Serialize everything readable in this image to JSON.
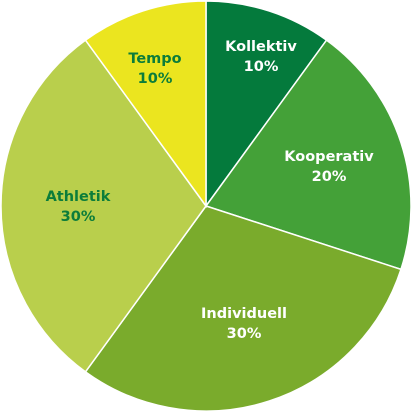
{
  "chart_data": {
    "type": "pie",
    "slices": [
      {
        "label": "Kollektiv",
        "value": 10,
        "value_label": "10%",
        "color": "#047a3c",
        "text_color": "#ffffff"
      },
      {
        "label": "Kooperativ",
        "value": 20,
        "value_label": "20%",
        "color": "#44a138",
        "text_color": "#ffffff"
      },
      {
        "label": "Individuell",
        "value": 30,
        "value_label": "30%",
        "color": "#7aab2c",
        "text_color": "#ffffff"
      },
      {
        "label": "Athletik",
        "value": 30,
        "value_label": "30%",
        "color": "#b9cf4c",
        "text_color": "#0c7d3a"
      },
      {
        "label": "Tempo",
        "value": 10,
        "value_label": "10%",
        "color": "#ebe51f",
        "text_color": "#0c7d3a"
      }
    ],
    "start": "12 o'clock",
    "direction": "clockwise",
    "legend": "none",
    "title": ""
  }
}
